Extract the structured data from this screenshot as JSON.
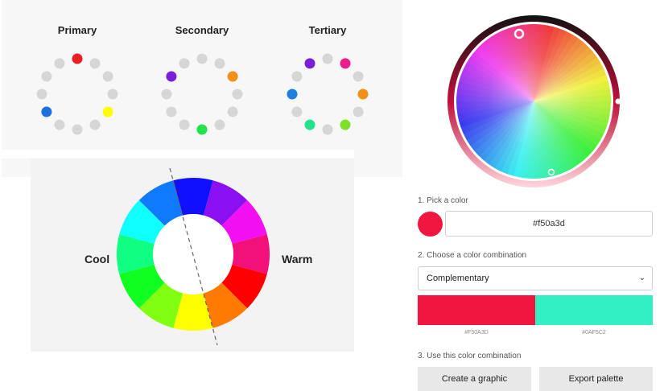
{
  "color_wheels": {
    "primary": {
      "title": "Primary",
      "active_colors": [
        "#ec1c24",
        "#ffff00",
        "#1e6fe0"
      ]
    },
    "secondary": {
      "title": "Secondary",
      "active_colors": [
        "#f39019",
        "#22e34a",
        "#7a1fd8"
      ]
    },
    "tertiary": {
      "title": "Tertiary",
      "active_colors": [
        "#ec1c8c",
        "#f39019",
        "#7ee02a",
        "#22e38a",
        "#1e7fe0",
        "#7a1fd8"
      ]
    },
    "inactive_color": "#d6d6d6"
  },
  "temperature_wheel": {
    "cool_label": "Cool",
    "warm_label": "Warm",
    "segments": [
      "#8a10f2",
      "#f20ff2",
      "#f2107a",
      "#ff0000",
      "#ff7a00",
      "#ffff00",
      "#80ff10",
      "#10ff20",
      "#10ff80",
      "#10ffff",
      "#107aff",
      "#1010ff"
    ]
  },
  "picker": {
    "step1_label": "1. Pick a color",
    "selected_hex": "#f50a3d",
    "step2_label": "2. Choose a color combination",
    "combination": "Complementary",
    "combo_colors": [
      {
        "hex": "#F50A3D",
        "color": "#f0163f"
      },
      {
        "hex": "#0AF5C2",
        "color": "#33f0c4"
      }
    ],
    "step3_label": "3. Use this color combination",
    "create_button": "Create a graphic",
    "export_button": "Export palette"
  }
}
